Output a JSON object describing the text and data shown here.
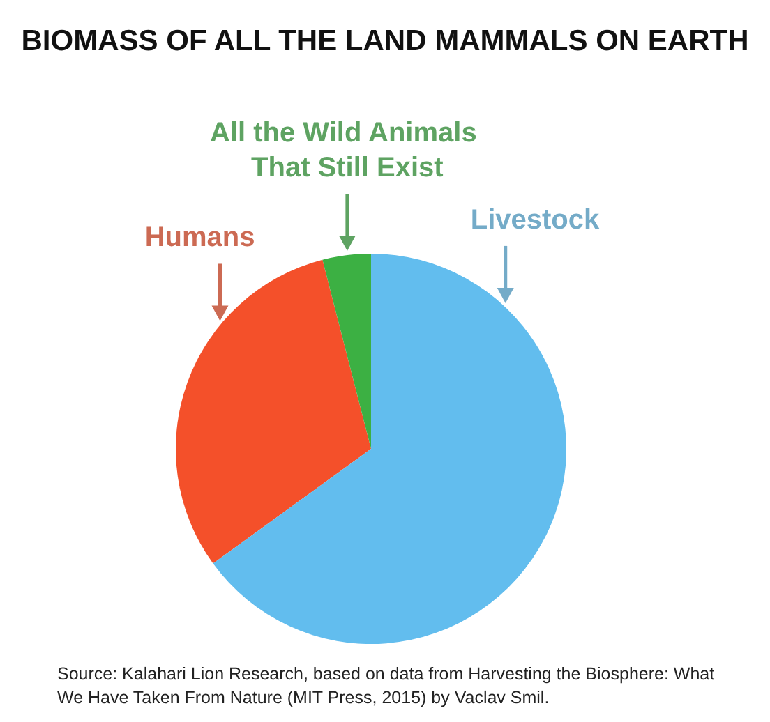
{
  "chart_data": {
    "type": "pie",
    "title": "BIOMASS OF ALL THE LAND MAMMALS ON EARTH",
    "categories": [
      "Humans",
      "All the Wild Animals That Still Exist",
      "Livestock"
    ],
    "values": [
      31,
      4,
      65
    ],
    "colors": [
      "#f4502a",
      "#3cb043",
      "#62bdee"
    ],
    "annotations": [
      "Source: Kalahari Lion Research, based on data from Harvesting the Biosphere: What We Have Taken From Nature (MIT Press, 2015) by Vaclav Smil."
    ]
  }
}
